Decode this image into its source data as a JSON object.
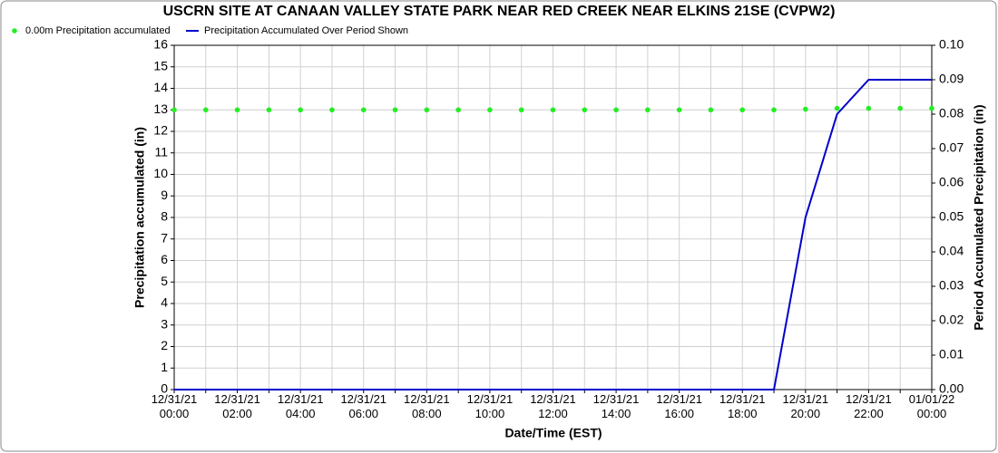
{
  "chart_data": {
    "type": "line",
    "title": "USCRN SITE AT CANAAN VALLEY STATE PARK NEAR RED CREEK NEAR ELKINS 21SE (CVPW2)",
    "xlabel": "Date/Time (EST)",
    "ylabel": "Precipitation accumulated (in)",
    "y2label": "Period Accumulated Precipitation (in)",
    "categories": [
      "12/31/21 00:00",
      null,
      "12/31/21 02:00",
      null,
      "12/31/21 04:00",
      null,
      "12/31/21 06:00",
      null,
      "12/31/21 08:00",
      null,
      "12/31/21 10:00",
      null,
      "12/31/21 12:00",
      null,
      "12/31/21 14:00",
      null,
      "12/31/21 16:00",
      null,
      "12/31/21 18:00",
      null,
      "12/31/21 20:00",
      null,
      "12/31/21 22:00",
      null,
      "01/01/22 00:00"
    ],
    "series": [
      {
        "name": "0.00m Precipitation accumulated",
        "color": "#22ee22",
        "style": "points",
        "values": [
          13.0,
          13.0,
          13.0,
          13.0,
          13.0,
          13.0,
          13.0,
          13.0,
          13.0,
          13.0,
          13.0,
          13.0,
          13.0,
          13.0,
          13.0,
          13.0,
          13.0,
          13.0,
          13.0,
          13.0,
          13.03,
          13.07,
          13.07,
          13.07,
          13.07
        ]
      },
      {
        "name": "Precipitation Accumulated Over Period Shown",
        "color": "#0000cc",
        "style": "line",
        "axis": "y2",
        "values": [
          0,
          0,
          0,
          0,
          0,
          0,
          0,
          0,
          0,
          0,
          0,
          0,
          0,
          0,
          0,
          0,
          0,
          0,
          0,
          0,
          0.05,
          0.08,
          0.09,
          0.09,
          0.09
        ]
      }
    ],
    "ylim": [
      0,
      16
    ],
    "yticks": [
      0,
      1,
      2,
      3,
      4,
      5,
      6,
      7,
      8,
      9,
      10,
      11,
      12,
      13,
      14,
      15,
      16
    ],
    "y2lim": [
      0,
      0.1
    ],
    "y2ticks": [
      {
        "value": 0,
        "label": "0.00"
      },
      0.01,
      0.02,
      0.03,
      0.04,
      0.05,
      0.06,
      0.07,
      0.08,
      0.09,
      {
        "value": 0.1,
        "label": "0.10"
      }
    ],
    "grid": true
  }
}
